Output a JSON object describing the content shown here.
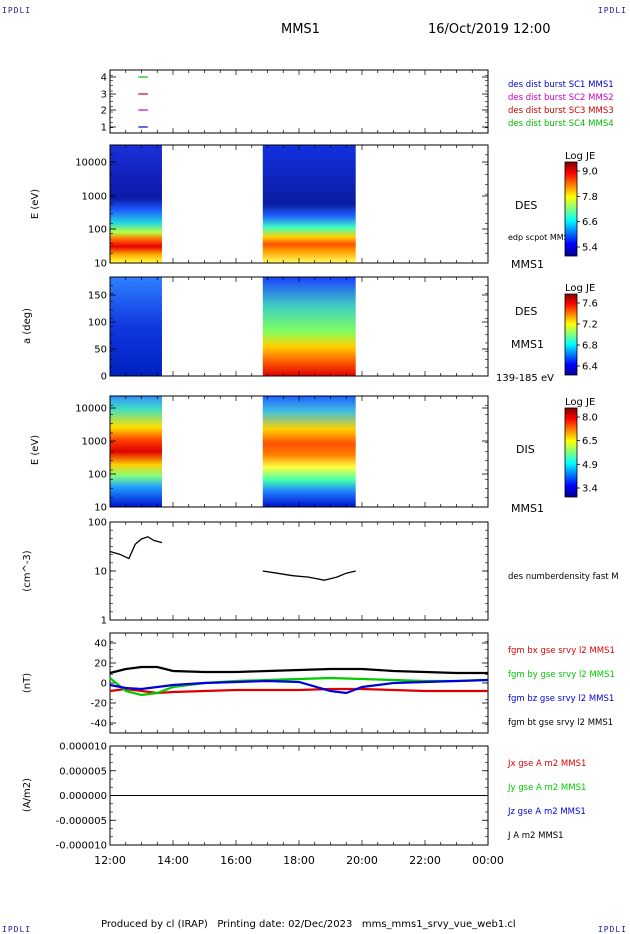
{
  "header": {
    "corner_left_top": "IPDLI",
    "corner_right_top": "IPDLI",
    "corner_left_bottom": "IPDLI",
    "corner_right_bottom": "IPDLI",
    "spacecraft": "MMS1",
    "datetime": "16/Oct/2019 12:00"
  },
  "footer": {
    "text": "Produced by cl (IRAP)   Printing date: 02/Dec/2023   mms_mms1_srvy_vue_web1.cl"
  },
  "chart_data": [
    {
      "type": "scatter",
      "id": "burst-availability",
      "yticks": [
        "4",
        "3",
        "2",
        "1"
      ],
      "legend": [
        {
          "label": "des dist burst SC1 MMS1",
          "color": "#0000cc"
        },
        {
          "label": "des dist burst SC2 MMS2",
          "color": "#cc00cc"
        },
        {
          "label": "des dist burst SC3 MMS3",
          "color": "#cc0000"
        },
        {
          "label": "des dist burst SC4 MMS4",
          "color": "#00bb00"
        }
      ],
      "segments": [
        {
          "row": 4,
          "color": "#00bb00",
          "x": [
            12.9,
            13.2
          ]
        },
        {
          "row": 3,
          "color": "#cc0000",
          "x": [
            12.9,
            13.2
          ]
        },
        {
          "row": 2,
          "color": "#cc00cc",
          "x": [
            12.9,
            13.2
          ]
        },
        {
          "row": 1,
          "color": "#0000cc",
          "x": [
            12.9,
            13.2
          ]
        }
      ]
    },
    {
      "type": "heatmap",
      "id": "des-energy",
      "ylabel": "E (eV)",
      "yticks": [
        "10000",
        "1000",
        "100",
        "10"
      ],
      "labels": [
        "DES",
        "edp scpot MMS1",
        "MMS1"
      ],
      "colorbar": {
        "title": "Log JE",
        "ticks": [
          "9.0",
          "7.8",
          "6.6",
          "5.4"
        ]
      },
      "intervals": [
        [
          12.0,
          13.65
        ],
        [
          16.85,
          19.8
        ]
      ]
    },
    {
      "type": "heatmap",
      "id": "des-pitch-angle",
      "ylabel": "a (deg)",
      "yticks": [
        "150",
        "100",
        "50",
        "0"
      ],
      "labels": [
        "DES",
        "MMS1",
        "139-185 eV"
      ],
      "colorbar": {
        "title": "Log JE",
        "ticks": [
          "7.6",
          "7.2",
          "6.8",
          "6.4"
        ]
      },
      "intervals": [
        [
          12.0,
          13.65
        ],
        [
          16.85,
          19.8
        ]
      ]
    },
    {
      "type": "heatmap",
      "id": "dis-energy",
      "ylabel": "E (eV)",
      "yticks": [
        "10000",
        "1000",
        "100",
        "10"
      ],
      "labels": [
        "DIS",
        "MMS1"
      ],
      "colorbar": {
        "title": "Log JE",
        "ticks": [
          "8.0",
          "6.5",
          "4.9",
          "3.4"
        ]
      },
      "intervals": [
        [
          12.0,
          13.65
        ],
        [
          16.85,
          19.8
        ]
      ]
    },
    {
      "type": "line",
      "id": "density",
      "ylabel": "(cm^-3)",
      "yticks": [
        "100",
        "10",
        "1"
      ],
      "series": [
        {
          "name": "des numberdensity fast M",
          "color": "#000000",
          "segments": [
            {
              "x": [
                12.0,
                12.3,
                12.6,
                12.8,
                13.0,
                13.2,
                13.4,
                13.65
              ],
              "y": [
                25,
                22,
                18,
                35,
                45,
                50,
                42,
                38
              ]
            },
            {
              "x": [
                16.85,
                17.3,
                17.8,
                18.3,
                18.8,
                19.2,
                19.5,
                19.8
              ],
              "y": [
                10,
                9,
                8,
                7.5,
                6.5,
                7.5,
                9,
                10
              ]
            }
          ]
        }
      ]
    },
    {
      "type": "line",
      "id": "fgm",
      "ylabel": "(nT)",
      "yticks": [
        "40",
        "20",
        "0",
        "-20",
        "-40"
      ],
      "ylim": [
        -50,
        50
      ],
      "series": [
        {
          "name": "fgm bx gse srvy l2 MMS1",
          "color": "#dd0000",
          "x": [
            12.0,
            12.5,
            13.0,
            13.5,
            14.0,
            15.0,
            16.0,
            17.0,
            18.0,
            19.0,
            20.0,
            21.0,
            22.0,
            23.0,
            24.0
          ],
          "y": [
            -8,
            -6,
            -8,
            -10,
            -9,
            -8,
            -7,
            -7,
            -7,
            -6,
            -6,
            -7,
            -8,
            -8,
            -8
          ]
        },
        {
          "name": "fgm by gse srvy l2 MMS1",
          "color": "#00cc00",
          "x": [
            12.0,
            12.5,
            13.0,
            13.5,
            14.0,
            15.0,
            16.0,
            17.0,
            18.0,
            19.0,
            20.0,
            21.0,
            22.0,
            23.0,
            24.0
          ],
          "y": [
            5,
            -8,
            -12,
            -10,
            -4,
            0,
            2,
            3,
            4,
            5,
            4,
            3,
            2,
            2,
            3
          ]
        },
        {
          "name": "fgm bz gse srvy l2 MMS1",
          "color": "#0000dd",
          "x": [
            12.0,
            12.5,
            13.0,
            13.5,
            14.0,
            15.0,
            16.0,
            17.0,
            18.0,
            19.0,
            19.5,
            20.0,
            21.0,
            22.0,
            23.0,
            24.0
          ],
          "y": [
            -2,
            -5,
            -6,
            -4,
            -2,
            0,
            1,
            2,
            1,
            -8,
            -10,
            -4,
            0,
            1,
            2,
            3
          ]
        },
        {
          "name": "fgm bt gse srvy l2 MMS1",
          "color": "#000000",
          "x": [
            12.0,
            12.5,
            13.0,
            13.5,
            14.0,
            15.0,
            16.0,
            17.0,
            18.0,
            19.0,
            20.0,
            21.0,
            22.0,
            23.0,
            24.0
          ],
          "y": [
            10,
            14,
            16,
            16,
            12,
            11,
            11,
            12,
            13,
            14,
            14,
            12,
            11,
            10,
            10
          ]
        }
      ]
    },
    {
      "type": "line",
      "id": "current-density",
      "ylabel": "(A/m2)",
      "yticks": [
        "0.000010",
        "0.000005",
        "0.000000",
        "-0.000005",
        "-0.000010"
      ],
      "ylim": [
        -1e-05,
        1e-05
      ],
      "xticks": [
        "12:00",
        "14:00",
        "16:00",
        "18:00",
        "20:00",
        "22:00",
        "00:00"
      ],
      "series": [
        {
          "name": "Jx gse A m2 MMS1",
          "color": "#dd0000",
          "x": [
            12.0,
            24.0
          ],
          "y": [
            0,
            0
          ]
        },
        {
          "name": "Jy gse A m2 MMS1",
          "color": "#00cc00",
          "x": [
            12.0,
            24.0
          ],
          "y": [
            0,
            0
          ]
        },
        {
          "name": "Jz gse A m2 MMS1",
          "color": "#0000dd",
          "x": [
            12.0,
            24.0
          ],
          "y": [
            0,
            0
          ]
        },
        {
          "name": "J A m2 MMS1",
          "color": "#000000",
          "x": [
            12.0,
            24.0
          ],
          "y": [
            0,
            0
          ]
        }
      ]
    }
  ]
}
